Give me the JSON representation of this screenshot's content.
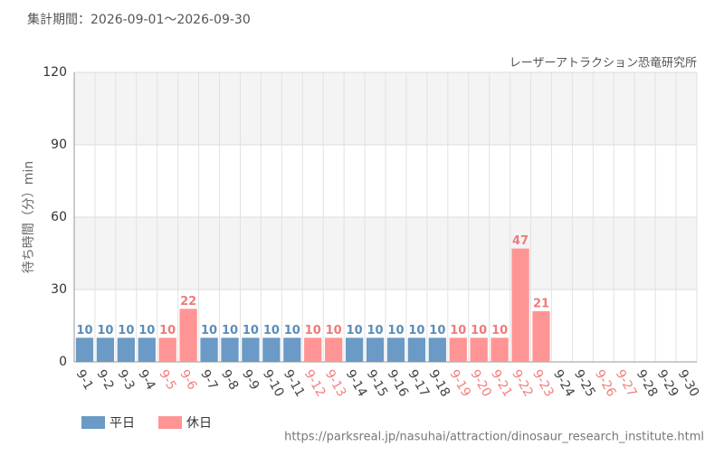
{
  "chart_data": {
    "type": "bar",
    "title": "集計期間：2026-09-01～2026-09-30",
    "subtitle": "レーザーアトラクション恐竜研究所",
    "y_label": "待ち時間（分）min",
    "source": "https://parksreal.jp/nasuhai/attraction/dinosaur_research_institute.html",
    "categories": [
      "9-1",
      "9-2",
      "9-3",
      "9-4",
      "9-5",
      "9-6",
      "9-7",
      "9-8",
      "9-9",
      "9-10",
      "9-11",
      "9-12",
      "9-13",
      "9-14",
      "9-15",
      "9-16",
      "9-17",
      "9-18",
      "9-19",
      "9-20",
      "9-21",
      "9-22",
      "9-23",
      "9-24",
      "9-25",
      "9-26",
      "9-27",
      "9-28",
      "9-29",
      "9-30"
    ],
    "category_colors": [
      "#444",
      "#444",
      "#444",
      "#444",
      "#f08080",
      "#f08080",
      "#444",
      "#444",
      "#444",
      "#444",
      "#444",
      "#f08080",
      "#f08080",
      "#444",
      "#444",
      "#444",
      "#444",
      "#444",
      "#f08080",
      "#f08080",
      "#f08080",
      "#f08080",
      "#f08080",
      "#444",
      "#444",
      "#f08080",
      "#f08080",
      "#444",
      "#444",
      "#444"
    ],
    "series": [
      {
        "name": "平日",
        "color": "#6a9ac5",
        "label_color": "#5b8db8",
        "values": [
          10,
          10,
          10,
          10,
          null,
          null,
          10,
          10,
          10,
          10,
          10,
          null,
          null,
          10,
          10,
          10,
          10,
          10,
          null,
          null,
          null,
          null,
          null,
          null,
          null,
          null,
          null,
          null,
          null,
          null
        ]
      },
      {
        "name": "休日",
        "color": "#ff9494",
        "label_color": "#f07a7a",
        "values": [
          null,
          null,
          null,
          null,
          10,
          22,
          null,
          null,
          null,
          null,
          null,
          10,
          10,
          null,
          null,
          null,
          null,
          null,
          10,
          10,
          10,
          47,
          21,
          null,
          null,
          null,
          null,
          null,
          null,
          null
        ]
      }
    ],
    "ylim": [
      0,
      120
    ],
    "yticks": [
      0,
      30,
      60,
      90,
      120
    ],
    "grid": true
  }
}
